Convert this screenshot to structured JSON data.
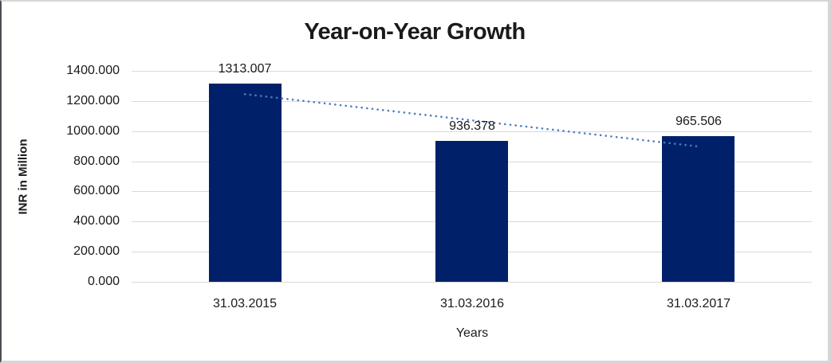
{
  "chart_data": {
    "type": "bar",
    "title": "Year-on-Year Growth",
    "xlabel": "Years",
    "ylabel": "INR in Million",
    "categories": [
      "31.03.2015",
      "31.03.2016",
      "31.03.2017"
    ],
    "values": [
      1313.007,
      936.378,
      965.506
    ],
    "data_labels": [
      "1313.007",
      "936.378",
      "965.506"
    ],
    "y_ticks": {
      "values": [
        0,
        200,
        400,
        600,
        800,
        1000,
        1200,
        1400
      ],
      "labels": [
        "0.000",
        "200.000",
        "400.000",
        "600.000",
        "800.000",
        "1000.000",
        "1200.000",
        "1400.000"
      ]
    },
    "ylim": [
      0,
      1400
    ],
    "grid": true,
    "legend": "none",
    "bar_color": "#002169",
    "gridline_color": "#d9d9d9",
    "axis_line_color": "#d9d9d9",
    "text_color": "#1a1a1a",
    "trendline": {
      "type": "linear",
      "style": "dotted",
      "color": "#4a7ebb"
    }
  }
}
